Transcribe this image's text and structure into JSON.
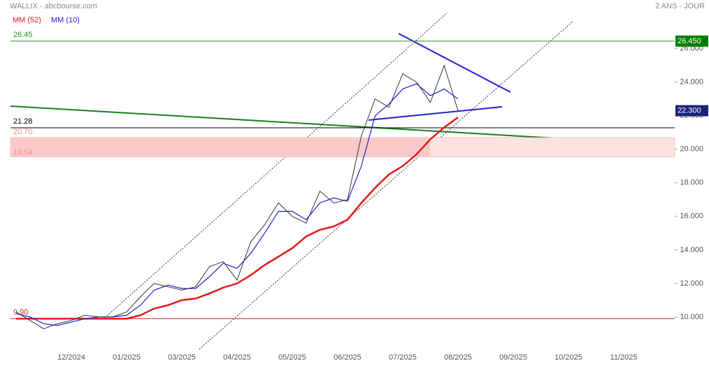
{
  "chart_data": {
    "type": "line",
    "title": "WALLIX - abcbourse.com",
    "subtitle": "2 ANS - JOUR",
    "categories": [
      null,
      null,
      null,
      null,
      "12/2024",
      null,
      null,
      null,
      "01/2025",
      null,
      null,
      null,
      "03/2025",
      null,
      null,
      null,
      "04/2025",
      null,
      null,
      null,
      "05/2025",
      null,
      null,
      null,
      "06/2025",
      null,
      null,
      null,
      "07/2025",
      null,
      null,
      null,
      "08/2025",
      null,
      null,
      null,
      "09/2025",
      null,
      null,
      null,
      "10/2025",
      null,
      null,
      null,
      "11/2025",
      null,
      null,
      null
    ],
    "series": [
      {
        "name": "MM (52)",
        "color": "#e31a1c",
        "values": [
          9.9,
          9.9,
          9.9,
          9.9,
          9.9,
          9.9,
          9.9,
          9.9,
          9.9,
          10.1,
          10.5,
          10.7,
          11.0,
          11.1,
          11.4,
          11.75,
          12.0,
          12.5,
          13.1,
          13.6,
          14.1,
          14.8,
          15.2,
          15.4,
          15.8,
          16.8,
          17.7,
          18.5,
          19.0,
          19.7,
          20.6,
          21.3,
          21.9,
          null,
          null,
          null,
          null,
          null,
          null,
          null,
          null,
          null,
          null,
          null,
          null,
          null,
          null,
          null
        ]
      },
      {
        "name": "MM (10)",
        "color": "#1f1fd6",
        "values": [
          10.2,
          10.0,
          9.6,
          9.5,
          9.7,
          9.9,
          10.0,
          10.0,
          10.1,
          10.7,
          11.6,
          11.9,
          11.7,
          11.7,
          12.4,
          13.2,
          12.9,
          13.8,
          15.0,
          16.3,
          16.3,
          15.8,
          16.8,
          17.1,
          16.9,
          19.0,
          22.0,
          22.7,
          23.6,
          23.9,
          23.2,
          23.6,
          23.0,
          null,
          null,
          null,
          null,
          null,
          null,
          null,
          null,
          null,
          null,
          null,
          null,
          null,
          null,
          null
        ]
      },
      {
        "name": "WALLIX",
        "color": "#333333",
        "values": [
          10.3,
          9.8,
          9.3,
          9.6,
          9.8,
          10.1,
          10.0,
          10.0,
          10.3,
          11.2,
          12.0,
          11.8,
          11.6,
          11.8,
          13.0,
          13.3,
          12.2,
          14.5,
          15.5,
          16.8,
          16.0,
          15.6,
          17.5,
          16.8,
          17.0,
          20.8,
          23.0,
          22.5,
          24.5,
          24.0,
          22.8,
          25.0,
          22.3,
          null,
          null,
          null,
          null,
          null,
          null,
          null,
          null,
          null,
          null,
          null,
          null,
          null,
          null,
          null
        ]
      }
    ],
    "ylim": [
      7.25,
      28.9
    ],
    "yticks": [
      {
        "value": 10,
        "label": "10.000"
      },
      {
        "value": 12,
        "label": "12.000"
      },
      {
        "value": 14,
        "label": "14.000"
      },
      {
        "value": 16,
        "label": "16.000"
      },
      {
        "value": 18,
        "label": "18.000"
      },
      {
        "value": 20,
        "label": "20.000"
      },
      {
        "value": 22,
        "label": "22.000"
      },
      {
        "value": 24,
        "label": "24.000"
      },
      {
        "value": 26,
        "label": "26.000"
      }
    ],
    "levels": [
      {
        "value": 26.45,
        "label": "26.45",
        "color": "#2e8b2e"
      },
      {
        "value": 21.28,
        "label": "21.28",
        "color": "#000000"
      },
      {
        "value": 9.9,
        "label": "9.90",
        "color": "#d42a2a"
      }
    ],
    "zone": [
      {
        "value": 20.7,
        "label": "20.70"
      },
      {
        "value": 19.54,
        "label": "19.54"
      }
    ],
    "price_boxes": [
      {
        "value": 26.45,
        "label": "26.450",
        "color": "#008000"
      },
      {
        "value": 22.3,
        "label": "22.300",
        "color": "#1a237e"
      }
    ]
  }
}
